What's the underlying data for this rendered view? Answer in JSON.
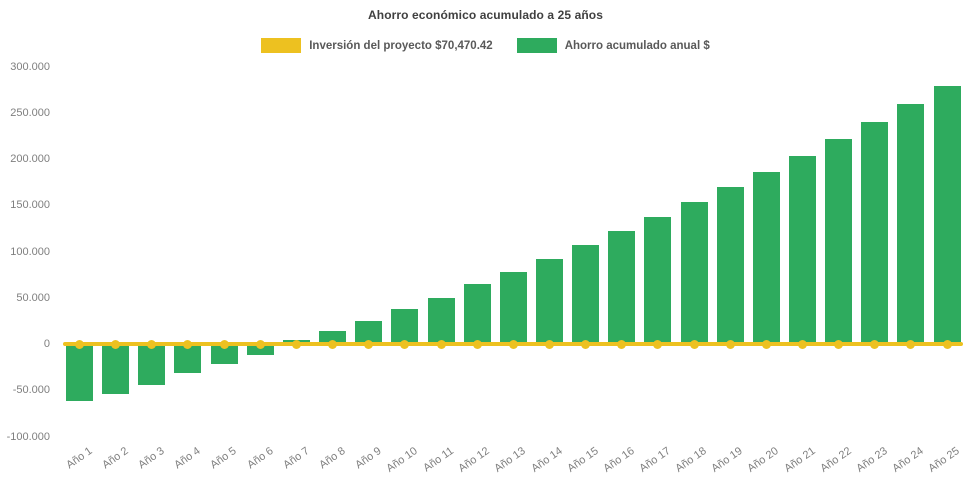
{
  "title": "Ahorro económico acumulado a 25 años",
  "legend": {
    "investment_label": "Inversión del proyecto $70,470.42",
    "savings_label": "Ahorro acumulado anual $"
  },
  "colors": {
    "investment_yellow": "#edc120",
    "savings_green": "#2eab5e",
    "title_text": "#404040",
    "legend_text": "#595959",
    "axis_text": "#7f7f7f",
    "background": "#ffffff"
  },
  "investment_value_shown": "$70,470.42",
  "chart_data": {
    "type": "bar",
    "title": "Ahorro económico acumulado a 25 años",
    "xlabel": "",
    "ylabel": "",
    "categories": [
      "Año 1",
      "Año 2",
      "Año 3",
      "Año 4",
      "Año 5",
      "Año 6",
      "Año 7",
      "Año 8",
      "Año 9",
      "Año 10",
      "Año 11",
      "Año 12",
      "Año 13",
      "Año 14",
      "Año 15",
      "Año 16",
      "Año 17",
      "Año 18",
      "Año 19",
      "Año 20",
      "Año 21",
      "Año 22",
      "Año 23",
      "Año 24",
      "Año 25"
    ],
    "series": [
      {
        "name": "Inversión del proyecto $70,470.42",
        "type": "line",
        "color": "#edc120",
        "marker": "circle",
        "values": [
          0,
          0,
          0,
          0,
          0,
          0,
          0,
          0,
          0,
          0,
          0,
          0,
          0,
          0,
          0,
          0,
          0,
          0,
          0,
          0,
          0,
          0,
          0,
          0,
          0
        ]
      },
      {
        "name": "Ahorro acumulado anual $",
        "type": "bar",
        "color": "#2eab5e",
        "values": [
          -62000,
          -54000,
          -44000,
          -31000,
          -22000,
          -11500,
          4000,
          14000,
          25000,
          37500,
          50000,
          65000,
          78000,
          92000,
          106500,
          122000,
          137500,
          153000,
          169500,
          186000,
          203500,
          221500,
          240500,
          259000,
          278500
        ]
      }
    ],
    "ylim": [
      -100000,
      300000
    ],
    "yticks": [
      300000,
      250000,
      200000,
      150000,
      100000,
      50000,
      0,
      -50000,
      -100000
    ],
    "ytick_labels": [
      "300.000",
      "250.000",
      "200.000",
      "150.000",
      "100.000",
      "50.000",
      "0",
      "-50.000",
      "-100.000"
    ],
    "grid": false,
    "legend_position": "top"
  }
}
